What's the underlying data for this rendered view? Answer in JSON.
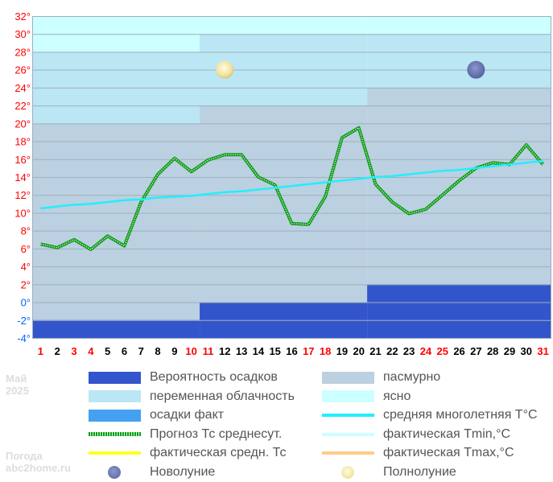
{
  "period": {
    "month": "Май",
    "year": "2025"
  },
  "site": {
    "line1": "Погода",
    "line2": "abc2home.ru"
  },
  "colors": {
    "clear": "#ccffff",
    "partly_cloudy": "#bbe6f4",
    "overcast": "#bbd0e0",
    "precip_prob": "#3355cc",
    "precip_fact": "#44a0f0",
    "norm_line": "#22eeff",
    "forecast_line": "#11991c",
    "fact_avg": "#ffff22",
    "fact_min": "#ccffff",
    "fact_max": "#ffcc88",
    "axis_red": "#ff0000",
    "axis_blue": "#0066ff",
    "axis_black": "#000000"
  },
  "chart_data": {
    "type": "line",
    "x": [
      1,
      2,
      3,
      4,
      5,
      6,
      7,
      8,
      9,
      10,
      11,
      12,
      13,
      14,
      15,
      16,
      17,
      18,
      19,
      20,
      21,
      22,
      23,
      24,
      25,
      26,
      27,
      28,
      29,
      30,
      31
    ],
    "weekend_days": [
      1,
      3,
      4,
      10,
      11,
      17,
      18,
      24,
      25,
      31
    ],
    "ylim": [
      -4,
      32
    ],
    "y_ticks": [
      "-4°",
      "-2°",
      "0°",
      "2°",
      "4°",
      "6°",
      "8°",
      "10°",
      "12°",
      "14°",
      "16°",
      "18°",
      "20°",
      "22°",
      "24°",
      "26°",
      "28°",
      "30°",
      "32°"
    ],
    "series": [
      {
        "name": "Прогноз Тс среднесут.",
        "style": "dotted-green",
        "values": [
          6.5,
          6.1,
          7.0,
          5.9,
          7.4,
          6.3,
          11.2,
          14.3,
          16.1,
          14.6,
          15.9,
          16.5,
          16.5,
          14.0,
          13.1,
          8.8,
          8.7,
          11.8,
          18.4,
          19.5,
          13.2,
          11.2,
          9.9,
          10.4,
          12.0,
          13.6,
          15.0,
          15.6,
          15.4,
          17.6,
          15.4
        ]
      },
      {
        "name": "средняя многолетняя T°C",
        "style": "cyan",
        "values": [
          10.5,
          10.7,
          10.9,
          11.0,
          11.2,
          11.4,
          11.5,
          11.7,
          11.8,
          11.9,
          12.1,
          12.3,
          12.4,
          12.6,
          12.8,
          13.0,
          13.2,
          13.4,
          13.6,
          13.8,
          14.0,
          14.1,
          14.3,
          14.5,
          14.7,
          14.8,
          15.0,
          15.2,
          15.4,
          15.6,
          15.8
        ]
      }
    ],
    "sky_cover_periods": [
      {
        "days": [
          1,
          10
        ],
        "overcast_top": 20,
        "partly_top": 28
      },
      {
        "days": [
          11,
          20
        ],
        "overcast_top": 22,
        "partly_top": 30
      },
      {
        "days": [
          21,
          31
        ],
        "overcast_top": 24,
        "partly_top": 30
      }
    ],
    "precip_probability_bars": [
      {
        "days": [
          1,
          10
        ],
        "top": -2
      },
      {
        "days": [
          11,
          20
        ],
        "top": 0
      },
      {
        "days": [
          21,
          31
        ],
        "top": 2
      }
    ],
    "moon_markers": [
      {
        "phase": "full",
        "day": 12,
        "y": 26
      },
      {
        "phase": "new",
        "day": 27,
        "y": 26
      }
    ]
  },
  "legend": [
    {
      "key": "precip_prob",
      "label": "Вероятность осадков",
      "swatch": "block"
    },
    {
      "key": "overcast",
      "label": "пасмурно",
      "swatch": "block"
    },
    {
      "key": "partly_cloudy",
      "label": "переменная облачность",
      "swatch": "block"
    },
    {
      "key": "clear",
      "label": "ясно",
      "swatch": "block"
    },
    {
      "key": "precip_fact",
      "label": "осадки факт",
      "swatch": "block"
    },
    {
      "key": "norm_line",
      "label": "средняя многолетняя T°C",
      "swatch": "line"
    },
    {
      "key": "forecast_line",
      "label": "Прогноз Тс среднесут.",
      "swatch": "dotted"
    },
    {
      "key": "fact_min",
      "label": "фактическая Tmin,°C",
      "swatch": "line"
    },
    {
      "key": "fact_avg",
      "label": "фактическая средн. Тс",
      "swatch": "line"
    },
    {
      "key": "fact_max",
      "label": "фактическая Tmax,°C",
      "swatch": "line"
    },
    {
      "key": "new_moon",
      "label": "Новолуние",
      "swatch": "new-moon"
    },
    {
      "key": "full_moon",
      "label": "Полнолуние",
      "swatch": "full-moon"
    }
  ]
}
